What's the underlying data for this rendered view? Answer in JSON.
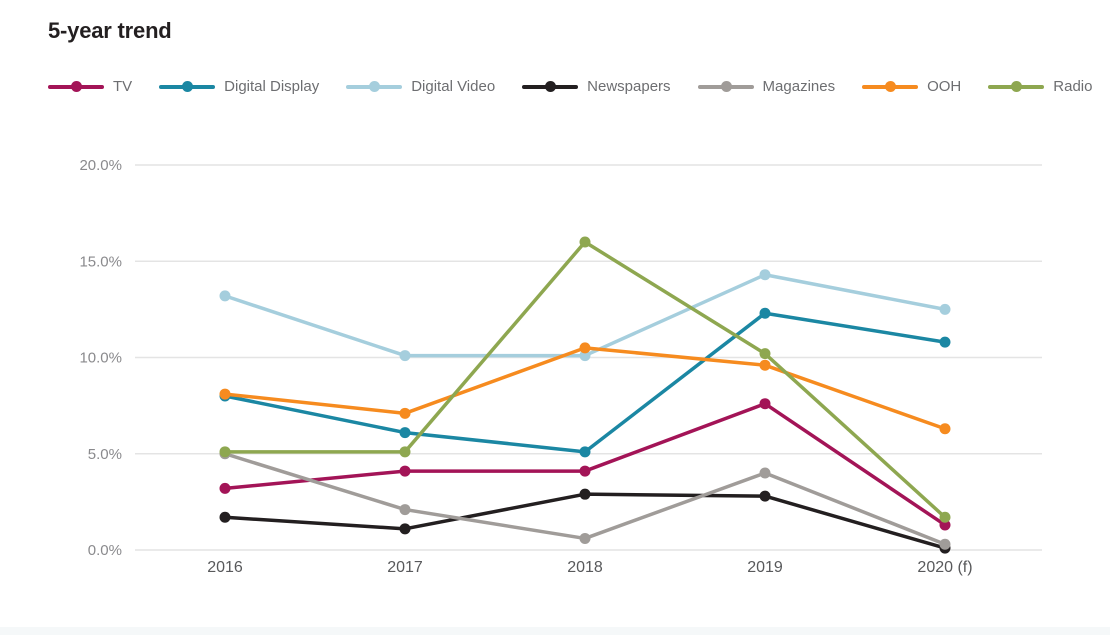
{
  "page": {
    "title": "5-year trend"
  },
  "chart_data": {
    "type": "line",
    "title": "5-year trend",
    "categories": [
      "2016",
      "2017",
      "2018",
      "2019",
      "2020 (f)"
    ],
    "series": [
      {
        "name": "TV",
        "color": "#a31457",
        "values": [
          3.2,
          4.1,
          4.1,
          7.6,
          1.3
        ]
      },
      {
        "name": "Digital Display",
        "color": "#1b87a3",
        "values": [
          8.0,
          6.1,
          5.1,
          12.3,
          10.8
        ]
      },
      {
        "name": "Digital Video",
        "color": "#a5cedd",
        "values": [
          13.2,
          10.1,
          10.1,
          14.3,
          12.5
        ]
      },
      {
        "name": "Newspapers",
        "color": "#231f20",
        "values": [
          1.7,
          1.1,
          2.9,
          2.8,
          0.1
        ]
      },
      {
        "name": "Magazines",
        "color": "#a09c99",
        "values": [
          5.0,
          2.1,
          0.6,
          4.0,
          0.3
        ]
      },
      {
        "name": "OOH",
        "color": "#f68b1f",
        "values": [
          8.1,
          7.1,
          10.5,
          9.6,
          6.3
        ]
      },
      {
        "name": "Radio",
        "color": "#8ea750",
        "values": [
          5.1,
          5.1,
          16.0,
          10.2,
          1.7
        ]
      }
    ],
    "y_ticks": [
      {
        "label": "20.0%",
        "value": 20
      },
      {
        "label": "15.0%",
        "value": 15
      },
      {
        "label": "10.0%",
        "value": 10
      },
      {
        "label": "5.0%",
        "value": 5
      },
      {
        "label": "0.0%",
        "value": 0
      }
    ],
    "ylim": [
      0,
      20
    ],
    "grid": true,
    "legend_position": "top",
    "axis_colors": {
      "grid": "#e4e4e4",
      "y_label": "#8a8a8d",
      "x_label": "#58595b"
    }
  }
}
